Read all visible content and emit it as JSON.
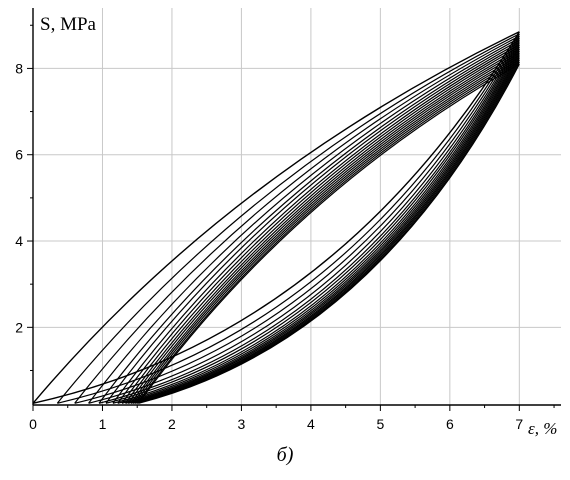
{
  "chart_data": {
    "type": "line",
    "xlabel": "ε, %",
    "ylabel": "S, MPa",
    "xlim": [
      0,
      7.6
    ],
    "ylim": [
      0.2,
      9.4
    ],
    "x_ticks": [
      0,
      1,
      2,
      3,
      4,
      5,
      6,
      7
    ],
    "y_ticks": [
      2,
      4,
      6,
      8
    ],
    "grid": true,
    "legend": "none",
    "series": [
      {
        "values": [
          [
            0,
            0.24
          ],
          [
            7,
            8.85
          ]
        ]
      },
      {
        "values": [
          [
            0.35,
            0.24
          ],
          [
            7,
            8.8
          ]
        ]
      },
      {
        "values": [
          [
            0.6,
            0.24
          ],
          [
            7,
            8.75
          ]
        ]
      },
      {
        "values": [
          [
            0.8,
            0.24
          ],
          [
            7,
            8.7
          ]
        ]
      },
      {
        "values": [
          [
            0.95,
            0.24
          ],
          [
            7,
            8.65
          ]
        ]
      },
      {
        "values": [
          [
            1.05,
            0.24
          ],
          [
            7,
            8.6
          ]
        ]
      },
      {
        "values": [
          [
            1.15,
            0.24
          ],
          [
            7,
            8.55
          ]
        ]
      },
      {
        "values": [
          [
            1.22,
            0.24
          ],
          [
            7,
            8.5
          ]
        ]
      },
      {
        "values": [
          [
            1.28,
            0.24
          ],
          [
            7,
            8.45
          ]
        ]
      },
      {
        "values": [
          [
            1.33,
            0.24
          ],
          [
            7,
            8.4
          ]
        ]
      },
      {
        "values": [
          [
            1.37,
            0.24
          ],
          [
            7,
            8.35
          ]
        ]
      },
      {
        "values": [
          [
            1.41,
            0.24
          ],
          [
            7,
            8.3
          ]
        ]
      },
      {
        "values": [
          [
            1.44,
            0.24
          ],
          [
            7,
            8.25
          ]
        ]
      },
      {
        "values": [
          [
            1.47,
            0.24
          ],
          [
            7,
            8.2
          ]
        ]
      },
      {
        "values": [
          [
            1.5,
            0.24
          ],
          [
            7,
            8.15
          ]
        ]
      },
      {
        "values": [
          [
            1.52,
            0.24
          ],
          [
            7,
            8.1
          ]
        ]
      }
    ]
  },
  "caption": "б)"
}
